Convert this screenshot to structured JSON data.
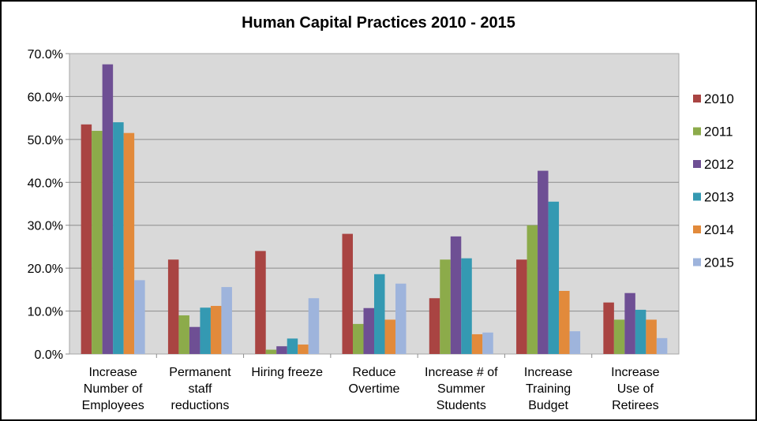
{
  "chart_data": {
    "type": "bar",
    "title": "Human Capital Practices 2010 - 2015",
    "xlabel": "",
    "ylabel": "",
    "ylim": [
      0,
      70
    ],
    "yticks": [
      0,
      10,
      20,
      30,
      40,
      50,
      60,
      70
    ],
    "ytick_labels": [
      "0.0%",
      "10.0%",
      "20.0%",
      "30.0%",
      "40.0%",
      "50.0%",
      "60.0%",
      "70.0%"
    ],
    "grid": true,
    "legend_position": "right",
    "categories": [
      [
        "Increase",
        "Number of",
        "Employees"
      ],
      [
        "Permanent",
        "staff",
        "reductions"
      ],
      [
        "Hiring freeze"
      ],
      [
        "Reduce",
        "Overtime"
      ],
      [
        "Increase # of",
        "Summer",
        "Students"
      ],
      [
        "Increase",
        "Training",
        "Budget"
      ],
      [
        "Increase",
        "Use of",
        "Retirees"
      ]
    ],
    "series": [
      {
        "name": "2010",
        "color": "#A94442",
        "values": [
          53.5,
          22.0,
          24.0,
          28.0,
          13.0,
          22.0,
          12.0
        ]
      },
      {
        "name": "2011",
        "color": "#8CAB4A",
        "values": [
          52.0,
          9.0,
          1.0,
          7.0,
          22.0,
          30.0,
          8.0
        ]
      },
      {
        "name": "2012",
        "color": "#6E4F94",
        "values": [
          67.5,
          6.3,
          1.8,
          10.7,
          27.4,
          42.7,
          14.2
        ]
      },
      {
        "name": "2013",
        "color": "#3499B2",
        "values": [
          54.0,
          10.8,
          3.6,
          18.6,
          22.3,
          35.5,
          10.3
        ]
      },
      {
        "name": "2014",
        "color": "#E28A3B",
        "values": [
          51.5,
          11.2,
          2.2,
          8.0,
          4.6,
          14.7,
          8.0
        ]
      },
      {
        "name": "2015",
        "color": "#9EB4DC",
        "values": [
          17.2,
          15.6,
          13.0,
          16.4,
          5.0,
          5.3,
          3.7
        ]
      }
    ]
  }
}
